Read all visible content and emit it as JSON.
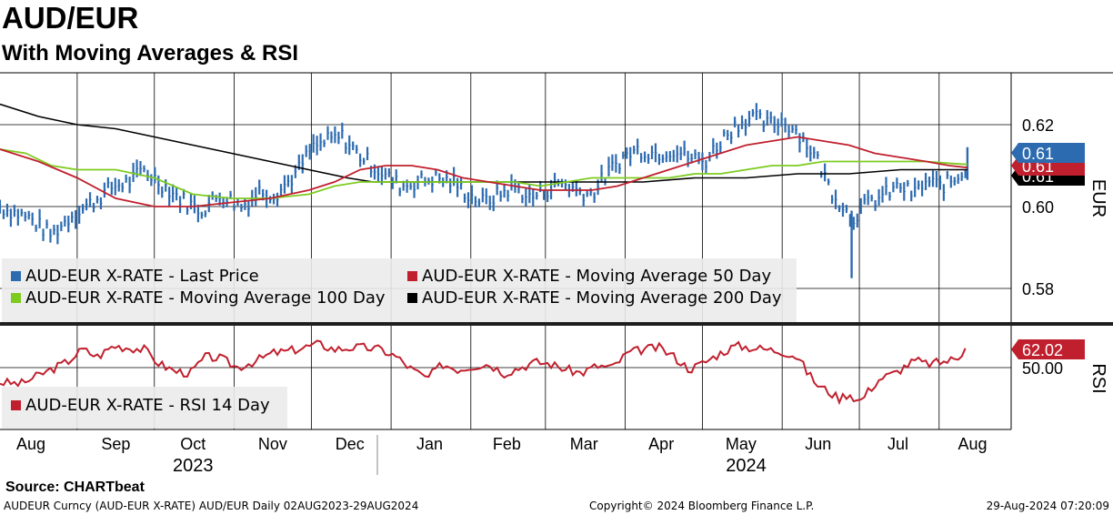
{
  "header": {
    "title": "AUD/EUR",
    "subtitle": "With Moving Averages & RSI"
  },
  "footer": {
    "source": "Source:  CHARTbeat",
    "security": "AUDEUR Curncy (AUD-EUR X-RATE) AUD/EUR  Daily 02AUG2023-29AUG2024",
    "copyright": "Copyright© 2024 Bloomberg Finance L.P.",
    "timestamp": "29-Aug-2024 07:20:09"
  },
  "colors": {
    "price": "#2d6bb0",
    "ma50": "#c0202e",
    "ma100": "#7ecb20",
    "ma200": "#000000",
    "rsi": "#c0202e",
    "legend_bg": "#ebebeb",
    "separator": "#1e1e1e"
  },
  "chart_data": [
    {
      "type": "line",
      "title": "AUD/EUR",
      "ylabel": "EUR",
      "ylim": [
        0.573,
        0.632
      ],
      "yticks": [
        0.58,
        0.6,
        0.62
      ],
      "ytick_labels": [
        "0.58",
        "0.60",
        "0.62"
      ],
      "x_months": [
        "Aug",
        "Sep",
        "Oct",
        "Nov",
        "Dec",
        "Jan",
        "Feb",
        "Mar",
        "Apr",
        "May",
        "Jun",
        "Jul",
        "Aug"
      ],
      "x_years": [
        "2023",
        "2024"
      ],
      "x_range_days": [
        0,
        393
      ],
      "series": [
        {
          "name": "AUD-EUR X-RATE - Last Price",
          "legend": "AUD-EUR X-RATE - Last Price",
          "style": "bar",
          "last_label": "0.61",
          "points": [
            [
              0,
              0.6
            ],
            [
              12,
              0.597
            ],
            [
              20,
              0.593
            ],
            [
              28,
              0.598
            ],
            [
              36,
              0.601
            ],
            [
              44,
              0.605
            ],
            [
              50,
              0.606
            ],
            [
              56,
              0.609
            ],
            [
              62,
              0.606
            ],
            [
              70,
              0.602
            ],
            [
              78,
              0.599
            ],
            [
              86,
              0.603
            ],
            [
              94,
              0.6
            ],
            [
              101,
              0.604
            ],
            [
              107,
              0.603
            ],
            [
              115,
              0.608
            ],
            [
              121,
              0.614
            ],
            [
              127,
              0.616
            ],
            [
              133,
              0.617
            ],
            [
              139,
              0.613
            ],
            [
              145,
              0.61
            ],
            [
              151,
              0.607
            ],
            [
              156,
              0.605
            ],
            [
              162,
              0.606
            ],
            [
              169,
              0.607
            ],
            [
              176,
              0.606
            ],
            [
              182,
              0.603
            ],
            [
              188,
              0.601
            ],
            [
              194,
              0.603
            ],
            [
              200,
              0.605
            ],
            [
              206,
              0.602
            ],
            [
              212,
              0.604
            ],
            [
              218,
              0.606
            ],
            [
              224,
              0.604
            ],
            [
              230,
              0.603
            ],
            [
              236,
              0.608
            ],
            [
              242,
              0.612
            ],
            [
              248,
              0.614
            ],
            [
              255,
              0.613
            ],
            [
              262,
              0.614
            ],
            [
              268,
              0.612
            ],
            [
              274,
              0.611
            ],
            [
              280,
              0.616
            ],
            [
              286,
              0.62
            ],
            [
              292,
              0.622
            ],
            [
              298,
              0.62
            ],
            [
              304,
              0.621
            ],
            [
              309,
              0.619
            ],
            [
              314,
              0.615
            ],
            [
              318,
              0.611
            ],
            [
              323,
              0.604
            ],
            [
              328,
              0.6
            ],
            [
              331,
              0.597
            ],
            [
              334,
              0.599
            ],
            [
              338,
              0.601
            ],
            [
              344,
              0.603
            ],
            [
              350,
              0.605
            ],
            [
              355,
              0.603
            ],
            [
              360,
              0.606
            ],
            [
              366,
              0.605
            ],
            [
              372,
              0.607
            ],
            [
              376,
              0.61
            ]
          ]
        },
        {
          "name": "AUD-EUR X-RATE - Moving Average 50 Day",
          "legend": "AUD-EUR X-RATE - Moving Average 50 Day",
          "last_label": "0.61",
          "points": [
            [
              0,
              0.614
            ],
            [
              15,
              0.611
            ],
            [
              30,
              0.607
            ],
            [
              45,
              0.602
            ],
            [
              60,
              0.6
            ],
            [
              75,
              0.6
            ],
            [
              90,
              0.601
            ],
            [
              105,
              0.602
            ],
            [
              120,
              0.604
            ],
            [
              130,
              0.606
            ],
            [
              140,
              0.609
            ],
            [
              150,
              0.61
            ],
            [
              160,
              0.61
            ],
            [
              170,
              0.609
            ],
            [
              180,
              0.607
            ],
            [
              190,
              0.606
            ],
            [
              200,
              0.605
            ],
            [
              210,
              0.604
            ],
            [
              220,
              0.604
            ],
            [
              230,
              0.604
            ],
            [
              240,
              0.605
            ],
            [
              250,
              0.607
            ],
            [
              260,
              0.609
            ],
            [
              270,
              0.611
            ],
            [
              280,
              0.613
            ],
            [
              290,
              0.615
            ],
            [
              300,
              0.616
            ],
            [
              310,
              0.617
            ],
            [
              320,
              0.616
            ],
            [
              330,
              0.615
            ],
            [
              340,
              0.613
            ],
            [
              350,
              0.612
            ],
            [
              360,
              0.611
            ],
            [
              369,
              0.61
            ],
            [
              376,
              0.6095
            ]
          ]
        },
        {
          "name": "AUD-EUR X-RATE - Moving Average 100 Day",
          "legend": "AUD-EUR X-RATE - Moving Average 100 Day",
          "last_label": "0.61",
          "points": [
            [
              0,
              0.614
            ],
            [
              10,
              0.613
            ],
            [
              20,
              0.61
            ],
            [
              30,
              0.609
            ],
            [
              45,
              0.609
            ],
            [
              60,
              0.607
            ],
            [
              75,
              0.603
            ],
            [
              90,
              0.602
            ],
            [
              105,
              0.602
            ],
            [
              120,
              0.603
            ],
            [
              130,
              0.605
            ],
            [
              140,
              0.606
            ],
            [
              150,
              0.606
            ],
            [
              165,
              0.606
            ],
            [
              180,
              0.606
            ],
            [
              200,
              0.606
            ],
            [
              210,
              0.605
            ],
            [
              220,
              0.606
            ],
            [
              230,
              0.607
            ],
            [
              240,
              0.607
            ],
            [
              250,
              0.607
            ],
            [
              260,
              0.607
            ],
            [
              270,
              0.608
            ],
            [
              280,
              0.608
            ],
            [
              290,
              0.609
            ],
            [
              300,
              0.61
            ],
            [
              310,
              0.61
            ],
            [
              320,
              0.611
            ],
            [
              330,
              0.611
            ],
            [
              340,
              0.611
            ],
            [
              350,
              0.611
            ],
            [
              360,
              0.611
            ],
            [
              370,
              0.6105
            ],
            [
              376,
              0.6103
            ]
          ]
        },
        {
          "name": "AUD-EUR X-RATE - Moving Average 200 Day",
          "legend": "AUD-EUR X-RATE - Moving Average 200 Day",
          "last_label": "0.61",
          "points": [
            [
              0,
              0.625
            ],
            [
              15,
              0.622
            ],
            [
              30,
              0.62
            ],
            [
              45,
              0.619
            ],
            [
              60,
              0.617
            ],
            [
              75,
              0.615
            ],
            [
              90,
              0.613
            ],
            [
              105,
              0.611
            ],
            [
              120,
              0.609
            ],
            [
              135,
              0.607
            ],
            [
              145,
              0.606
            ],
            [
              160,
              0.606
            ],
            [
              175,
              0.606
            ],
            [
              195,
              0.606
            ],
            [
              215,
              0.606
            ],
            [
              230,
              0.606
            ],
            [
              250,
              0.606
            ],
            [
              270,
              0.607
            ],
            [
              290,
              0.607
            ],
            [
              310,
              0.608
            ],
            [
              330,
              0.608
            ],
            [
              350,
              0.609
            ],
            [
              365,
              0.609
            ],
            [
              376,
              0.609
            ]
          ]
        }
      ]
    },
    {
      "type": "line",
      "title": "RSI",
      "ylabel": "RSI",
      "yticks": [
        50
      ],
      "ytick_labels": [
        "50.00"
      ],
      "ylim": [
        25,
        78
      ],
      "series": [
        {
          "name": "AUD-EUR X-RATE - RSI 14 Day",
          "legend": "AUD-EUR X-RATE - RSI 14 Day",
          "last_label": "62.02",
          "points": [
            [
              0,
              42
            ],
            [
              8,
              41
            ],
            [
              14,
              45
            ],
            [
              20,
              49
            ],
            [
              26,
              53
            ],
            [
              32,
              60
            ],
            [
              38,
              56
            ],
            [
              44,
              62
            ],
            [
              50,
              61
            ],
            [
              56,
              60
            ],
            [
              62,
              52
            ],
            [
              68,
              48
            ],
            [
              74,
              47
            ],
            [
              80,
              56
            ],
            [
              86,
              55
            ],
            [
              92,
              50
            ],
            [
              100,
              54
            ],
            [
              106,
              58
            ],
            [
              112,
              59
            ],
            [
              118,
              61
            ],
            [
              124,
              63
            ],
            [
              130,
              60
            ],
            [
              136,
              61
            ],
            [
              142,
              61
            ],
            [
              148,
              60
            ],
            [
              154,
              56
            ],
            [
              160,
              49
            ],
            [
              166,
              44
            ],
            [
              172,
              52
            ],
            [
              178,
              49
            ],
            [
              184,
              51
            ],
            [
              190,
              52
            ],
            [
              196,
              47
            ],
            [
              202,
              50
            ],
            [
              208,
              53
            ],
            [
              214,
              52
            ],
            [
              220,
              49
            ],
            [
              226,
              47
            ],
            [
              232,
              51
            ],
            [
              238,
              50
            ],
            [
              244,
              58
            ],
            [
              250,
              60
            ],
            [
              256,
              61
            ],
            [
              262,
              56
            ],
            [
              268,
              49
            ],
            [
              274,
              53
            ],
            [
              280,
              58
            ],
            [
              286,
              62
            ],
            [
              292,
              61
            ],
            [
              298,
              60
            ],
            [
              304,
              59
            ],
            [
              310,
              56
            ],
            [
              314,
              47
            ],
            [
              318,
              40
            ],
            [
              322,
              37
            ],
            [
              326,
              33
            ],
            [
              330,
              36
            ],
            [
              334,
              31
            ],
            [
              338,
              38
            ],
            [
              342,
              44
            ],
            [
              348,
              47
            ],
            [
              352,
              51
            ],
            [
              356,
              54
            ],
            [
              360,
              52
            ],
            [
              366,
              53
            ],
            [
              372,
              55
            ],
            [
              376,
              62
            ]
          ]
        }
      ]
    }
  ]
}
